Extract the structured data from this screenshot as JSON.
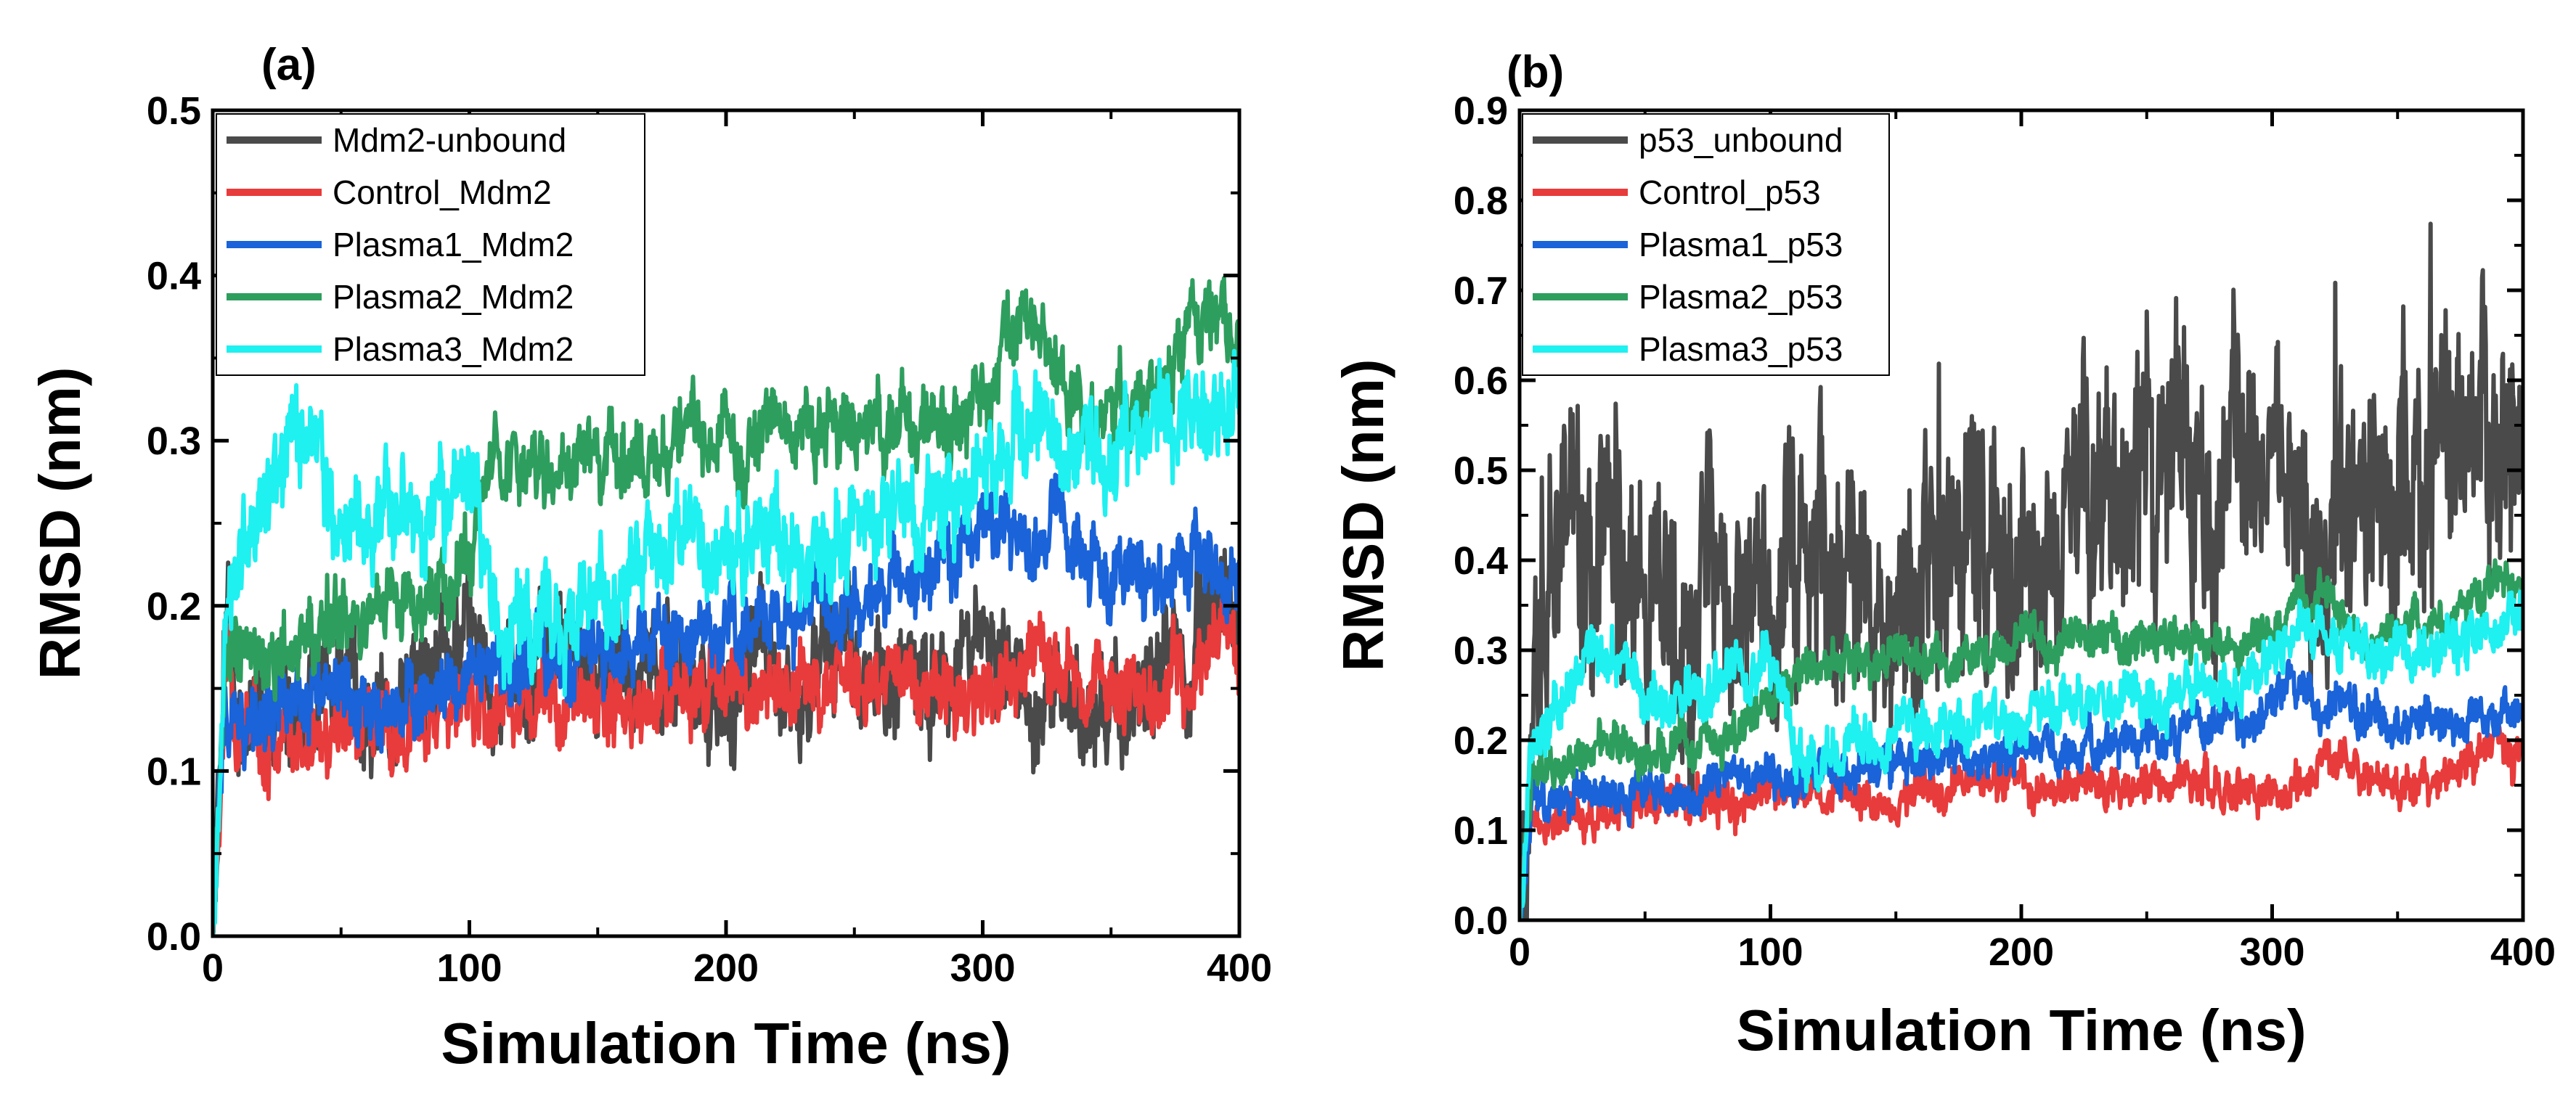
{
  "chart_data": [
    {
      "type": "line",
      "panel_label": "(a)",
      "xlabel": "Simulation Time (ns)",
      "ylabel": "RMSD (nm)",
      "xlim": [
        0,
        400
      ],
      "ylim": [
        0,
        0.5
      ],
      "xticks": [
        0,
        100,
        200,
        300,
        400
      ],
      "xtick_labels": [
        "0",
        "100",
        "200",
        "300",
        "400"
      ],
      "yticks": [
        0.0,
        0.1,
        0.2,
        0.3,
        0.4,
        0.5
      ],
      "ytick_labels": [
        "0.0",
        "0.1",
        "0.2",
        "0.3",
        "0.4",
        "0.5"
      ],
      "legend_position": "top-left",
      "series": [
        {
          "name": "Mdm2-unbound",
          "color": "#4a4a4a",
          "x": [
            0,
            5,
            10,
            20,
            30,
            40,
            50,
            60,
            70,
            80,
            90,
            100,
            110,
            120,
            130,
            140,
            150,
            160,
            170,
            180,
            190,
            200,
            210,
            220,
            230,
            240,
            250,
            260,
            270,
            280,
            290,
            300,
            310,
            320,
            330,
            340,
            350,
            360,
            370,
            380,
            390,
            400
          ],
          "values": [
            0.0,
            0.2,
            0.13,
            0.14,
            0.15,
            0.15,
            0.16,
            0.14,
            0.13,
            0.16,
            0.18,
            0.17,
            0.15,
            0.15,
            0.18,
            0.17,
            0.16,
            0.15,
            0.16,
            0.15,
            0.14,
            0.15,
            0.18,
            0.17,
            0.15,
            0.16,
            0.17,
            0.16,
            0.15,
            0.15,
            0.16,
            0.16,
            0.15,
            0.14,
            0.14,
            0.13,
            0.14,
            0.15,
            0.16,
            0.17,
            0.21,
            0.19
          ],
          "amplitude": 0.03
        },
        {
          "name": "Control_Mdm2",
          "color": "#e83b3b",
          "x": [
            0,
            5,
            10,
            20,
            30,
            40,
            50,
            60,
            70,
            80,
            90,
            100,
            110,
            120,
            130,
            140,
            150,
            160,
            170,
            180,
            190,
            200,
            210,
            220,
            230,
            240,
            250,
            260,
            270,
            280,
            290,
            300,
            310,
            320,
            330,
            340,
            350,
            360,
            370,
            380,
            390,
            400
          ],
          "values": [
            0.0,
            0.17,
            0.12,
            0.12,
            0.12,
            0.12,
            0.13,
            0.13,
            0.13,
            0.13,
            0.13,
            0.14,
            0.14,
            0.14,
            0.14,
            0.14,
            0.14,
            0.14,
            0.14,
            0.15,
            0.15,
            0.15,
            0.15,
            0.15,
            0.15,
            0.15,
            0.15,
            0.15,
            0.15,
            0.15,
            0.15,
            0.14,
            0.15,
            0.18,
            0.17,
            0.15,
            0.15,
            0.15,
            0.15,
            0.16,
            0.2,
            0.17
          ],
          "amplitude": 0.02
        },
        {
          "name": "Plasma1_Mdm2",
          "color": "#1a63d8",
          "x": [
            0,
            5,
            10,
            20,
            30,
            40,
            50,
            60,
            70,
            80,
            90,
            100,
            110,
            120,
            130,
            140,
            150,
            160,
            170,
            180,
            190,
            200,
            210,
            220,
            230,
            240,
            250,
            260,
            270,
            280,
            290,
            300,
            310,
            320,
            330,
            340,
            350,
            360,
            370,
            380,
            390,
            400
          ],
          "values": [
            0.0,
            0.15,
            0.13,
            0.13,
            0.14,
            0.14,
            0.14,
            0.14,
            0.14,
            0.15,
            0.15,
            0.16,
            0.16,
            0.17,
            0.17,
            0.17,
            0.17,
            0.18,
            0.18,
            0.18,
            0.18,
            0.19,
            0.19,
            0.19,
            0.2,
            0.2,
            0.2,
            0.21,
            0.22,
            0.22,
            0.23,
            0.25,
            0.25,
            0.24,
            0.24,
            0.23,
            0.22,
            0.22,
            0.22,
            0.22,
            0.22,
            0.22
          ],
          "amplitude": 0.02
        },
        {
          "name": "Plasma2_Mdm2",
          "color": "#2e9e5e",
          "x": [
            0,
            5,
            10,
            20,
            30,
            40,
            50,
            60,
            70,
            80,
            90,
            100,
            110,
            120,
            130,
            140,
            150,
            160,
            170,
            180,
            190,
            200,
            210,
            220,
            230,
            240,
            250,
            260,
            270,
            280,
            290,
            300,
            310,
            320,
            330,
            340,
            350,
            360,
            370,
            380,
            390,
            400
          ],
          "values": [
            0.0,
            0.17,
            0.17,
            0.17,
            0.18,
            0.19,
            0.19,
            0.19,
            0.2,
            0.2,
            0.21,
            0.24,
            0.28,
            0.28,
            0.28,
            0.29,
            0.29,
            0.29,
            0.29,
            0.3,
            0.3,
            0.3,
            0.3,
            0.31,
            0.31,
            0.31,
            0.31,
            0.31,
            0.31,
            0.31,
            0.31,
            0.32,
            0.36,
            0.37,
            0.32,
            0.32,
            0.32,
            0.32,
            0.33,
            0.36,
            0.37,
            0.37
          ],
          "amplitude": 0.02
        },
        {
          "name": "Plasma3_Mdm2",
          "color": "#1ff0f0",
          "x": [
            0,
            5,
            10,
            20,
            30,
            40,
            50,
            60,
            70,
            80,
            90,
            100,
            110,
            120,
            130,
            140,
            150,
            160,
            170,
            180,
            190,
            200,
            210,
            220,
            230,
            240,
            250,
            260,
            270,
            280,
            290,
            300,
            310,
            320,
            330,
            340,
            350,
            360,
            370,
            380,
            390,
            400
          ],
          "values": [
            0.0,
            0.2,
            0.23,
            0.26,
            0.3,
            0.29,
            0.25,
            0.24,
            0.25,
            0.26,
            0.26,
            0.28,
            0.2,
            0.18,
            0.19,
            0.2,
            0.21,
            0.22,
            0.22,
            0.23,
            0.23,
            0.23,
            0.24,
            0.24,
            0.24,
            0.24,
            0.25,
            0.25,
            0.26,
            0.26,
            0.27,
            0.29,
            0.31,
            0.33,
            0.3,
            0.3,
            0.3,
            0.3,
            0.31,
            0.32,
            0.32,
            0.33
          ],
          "amplitude": 0.025
        }
      ]
    },
    {
      "type": "line",
      "panel_label": "(b)",
      "xlabel": "Simulation Time (ns)",
      "ylabel": "RMSD (nm)",
      "xlim": [
        0,
        400
      ],
      "ylim": [
        0,
        0.9
      ],
      "xticks": [
        0,
        100,
        200,
        300,
        400
      ],
      "xtick_labels": [
        "0",
        "100",
        "200",
        "300",
        "400"
      ],
      "yticks": [
        0.0,
        0.1,
        0.2,
        0.3,
        0.4,
        0.5,
        0.6,
        0.7,
        0.8,
        0.9
      ],
      "ytick_labels": [
        "0.0",
        "0.1",
        "0.2",
        "0.3",
        "0.4",
        "0.5",
        "0.6",
        "0.7",
        "0.8",
        "0.9"
      ],
      "legend_position": "top-left",
      "series": [
        {
          "name": "p53_unbound",
          "color": "#4a4a4a",
          "x": [
            0,
            5,
            10,
            20,
            30,
            40,
            50,
            60,
            70,
            80,
            90,
            100,
            110,
            120,
            130,
            140,
            150,
            160,
            170,
            180,
            190,
            200,
            210,
            220,
            230,
            240,
            250,
            260,
            270,
            280,
            290,
            300,
            310,
            320,
            330,
            340,
            350,
            360,
            370,
            380,
            390,
            400
          ],
          "values": [
            0.0,
            0.3,
            0.36,
            0.42,
            0.38,
            0.36,
            0.33,
            0.34,
            0.35,
            0.36,
            0.38,
            0.34,
            0.4,
            0.42,
            0.4,
            0.37,
            0.38,
            0.4,
            0.38,
            0.36,
            0.32,
            0.37,
            0.42,
            0.47,
            0.48,
            0.48,
            0.48,
            0.49,
            0.49,
            0.49,
            0.49,
            0.49,
            0.48,
            0.44,
            0.45,
            0.47,
            0.48,
            0.5,
            0.5,
            0.49,
            0.48,
            0.47
          ],
          "amplitude": 0.12
        },
        {
          "name": "Control_p53",
          "color": "#e83b3b",
          "x": [
            0,
            5,
            10,
            20,
            30,
            40,
            50,
            60,
            70,
            80,
            90,
            100,
            110,
            120,
            130,
            140,
            150,
            160,
            170,
            180,
            190,
            200,
            210,
            220,
            230,
            240,
            250,
            260,
            270,
            280,
            290,
            300,
            310,
            320,
            330,
            340,
            350,
            360,
            370,
            380,
            390,
            400
          ],
          "values": [
            0.0,
            0.14,
            0.12,
            0.12,
            0.12,
            0.12,
            0.13,
            0.13,
            0.13,
            0.13,
            0.13,
            0.14,
            0.14,
            0.14,
            0.14,
            0.14,
            0.14,
            0.14,
            0.14,
            0.15,
            0.15,
            0.15,
            0.15,
            0.15,
            0.15,
            0.15,
            0.15,
            0.15,
            0.15,
            0.15,
            0.15,
            0.14,
            0.15,
            0.18,
            0.17,
            0.15,
            0.15,
            0.15,
            0.16,
            0.17,
            0.2,
            0.18
          ],
          "amplitude": 0.02
        },
        {
          "name": "Plasma1_p53",
          "color": "#1a63d8",
          "x": [
            0,
            5,
            10,
            20,
            30,
            40,
            50,
            60,
            70,
            80,
            90,
            100,
            110,
            120,
            130,
            140,
            150,
            160,
            170,
            180,
            190,
            200,
            210,
            220,
            230,
            240,
            250,
            260,
            270,
            280,
            290,
            300,
            310,
            320,
            330,
            340,
            350,
            360,
            370,
            380,
            390,
            400
          ],
          "values": [
            0.0,
            0.14,
            0.13,
            0.13,
            0.14,
            0.14,
            0.14,
            0.14,
            0.14,
            0.15,
            0.15,
            0.16,
            0.16,
            0.17,
            0.17,
            0.17,
            0.17,
            0.18,
            0.18,
            0.18,
            0.18,
            0.19,
            0.19,
            0.19,
            0.2,
            0.2,
            0.2,
            0.21,
            0.22,
            0.22,
            0.23,
            0.25,
            0.25,
            0.24,
            0.24,
            0.23,
            0.22,
            0.22,
            0.22,
            0.22,
            0.22,
            0.22
          ],
          "amplitude": 0.02
        },
        {
          "name": "Plasma2_p53",
          "color": "#2e9e5e",
          "x": [
            0,
            5,
            10,
            20,
            30,
            40,
            50,
            60,
            70,
            80,
            90,
            100,
            110,
            120,
            130,
            140,
            150,
            160,
            170,
            180,
            190,
            200,
            210,
            220,
            230,
            240,
            250,
            260,
            270,
            280,
            290,
            300,
            310,
            320,
            330,
            340,
            350,
            360,
            370,
            380,
            390,
            400
          ],
          "values": [
            0.0,
            0.17,
            0.17,
            0.17,
            0.18,
            0.19,
            0.19,
            0.19,
            0.2,
            0.2,
            0.21,
            0.24,
            0.28,
            0.28,
            0.28,
            0.29,
            0.29,
            0.29,
            0.29,
            0.3,
            0.3,
            0.3,
            0.3,
            0.31,
            0.31,
            0.31,
            0.31,
            0.31,
            0.31,
            0.31,
            0.31,
            0.32,
            0.36,
            0.37,
            0.32,
            0.32,
            0.32,
            0.32,
            0.33,
            0.36,
            0.37,
            0.37
          ],
          "amplitude": 0.02
        },
        {
          "name": "Plasma3_p53",
          "color": "#1ff0f0",
          "x": [
            0,
            5,
            10,
            20,
            30,
            40,
            50,
            60,
            70,
            80,
            90,
            100,
            110,
            120,
            130,
            140,
            150,
            160,
            170,
            180,
            190,
            200,
            210,
            220,
            230,
            240,
            250,
            260,
            270,
            280,
            290,
            300,
            310,
            320,
            330,
            340,
            350,
            360,
            370,
            380,
            390,
            400
          ],
          "values": [
            0.0,
            0.2,
            0.23,
            0.26,
            0.3,
            0.29,
            0.25,
            0.24,
            0.25,
            0.26,
            0.26,
            0.28,
            0.2,
            0.18,
            0.19,
            0.2,
            0.21,
            0.22,
            0.22,
            0.23,
            0.23,
            0.23,
            0.24,
            0.24,
            0.24,
            0.24,
            0.25,
            0.25,
            0.26,
            0.26,
            0.27,
            0.29,
            0.31,
            0.33,
            0.3,
            0.3,
            0.3,
            0.3,
            0.31,
            0.32,
            0.32,
            0.33
          ],
          "amplitude": 0.025
        }
      ]
    }
  ]
}
